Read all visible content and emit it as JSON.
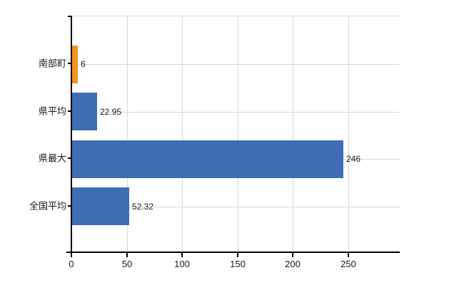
{
  "chart_data": {
    "type": "bar",
    "orientation": "horizontal",
    "title": "",
    "categories": [
      "南部町",
      "県平均",
      "県最大",
      "全国平均"
    ],
    "values": [
      6,
      22.95,
      246,
      52.32
    ],
    "value_labels": [
      "6",
      "22.95",
      "246",
      "52.32"
    ],
    "bar_colors": [
      "#f6921e",
      "#3e6db4",
      "#3e6db4",
      "#3e6db4"
    ],
    "x_tick_values": [
      0,
      50,
      100,
      150,
      200,
      250
    ],
    "x_tick_labels": [
      "0",
      "50",
      "100",
      "150",
      "200",
      "250"
    ],
    "xlim": [
      0,
      295
    ],
    "grid": true,
    "legend": "none",
    "colors": {
      "bar_default": "#3e6db4",
      "bar_highlight": "#f6921e",
      "grid": "#d9d9d9",
      "axis": "#000000",
      "text": "#1a1a1a",
      "background": "#ffffff"
    }
  }
}
